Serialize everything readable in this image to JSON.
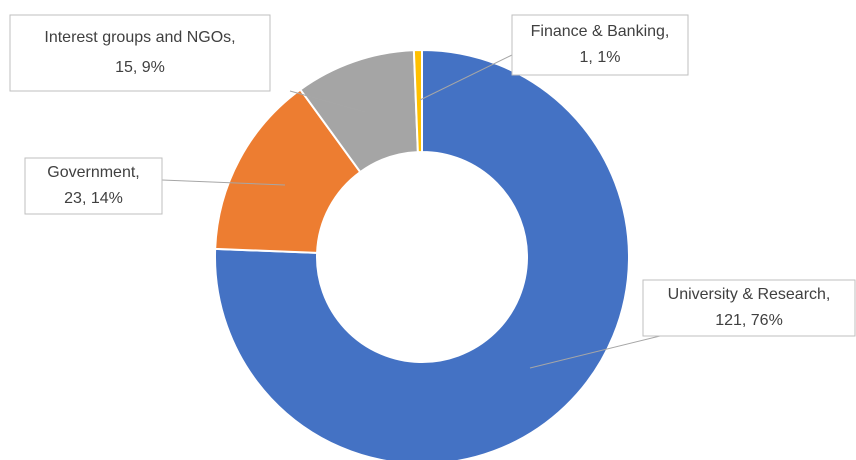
{
  "chart_data": {
    "type": "donut",
    "categories": [
      "University & Research,",
      "Government,",
      "Interest groups and NGOs,",
      "Finance & Banking,"
    ],
    "values": [
      121,
      23,
      15,
      1
    ],
    "value_labels": [
      "121, 76%",
      "23, 14%",
      "15, 9%",
      "1, 1%"
    ],
    "colors": [
      "#4472c4",
      "#ed7d31",
      "#a5a5a5",
      "#ffc000"
    ]
  }
}
